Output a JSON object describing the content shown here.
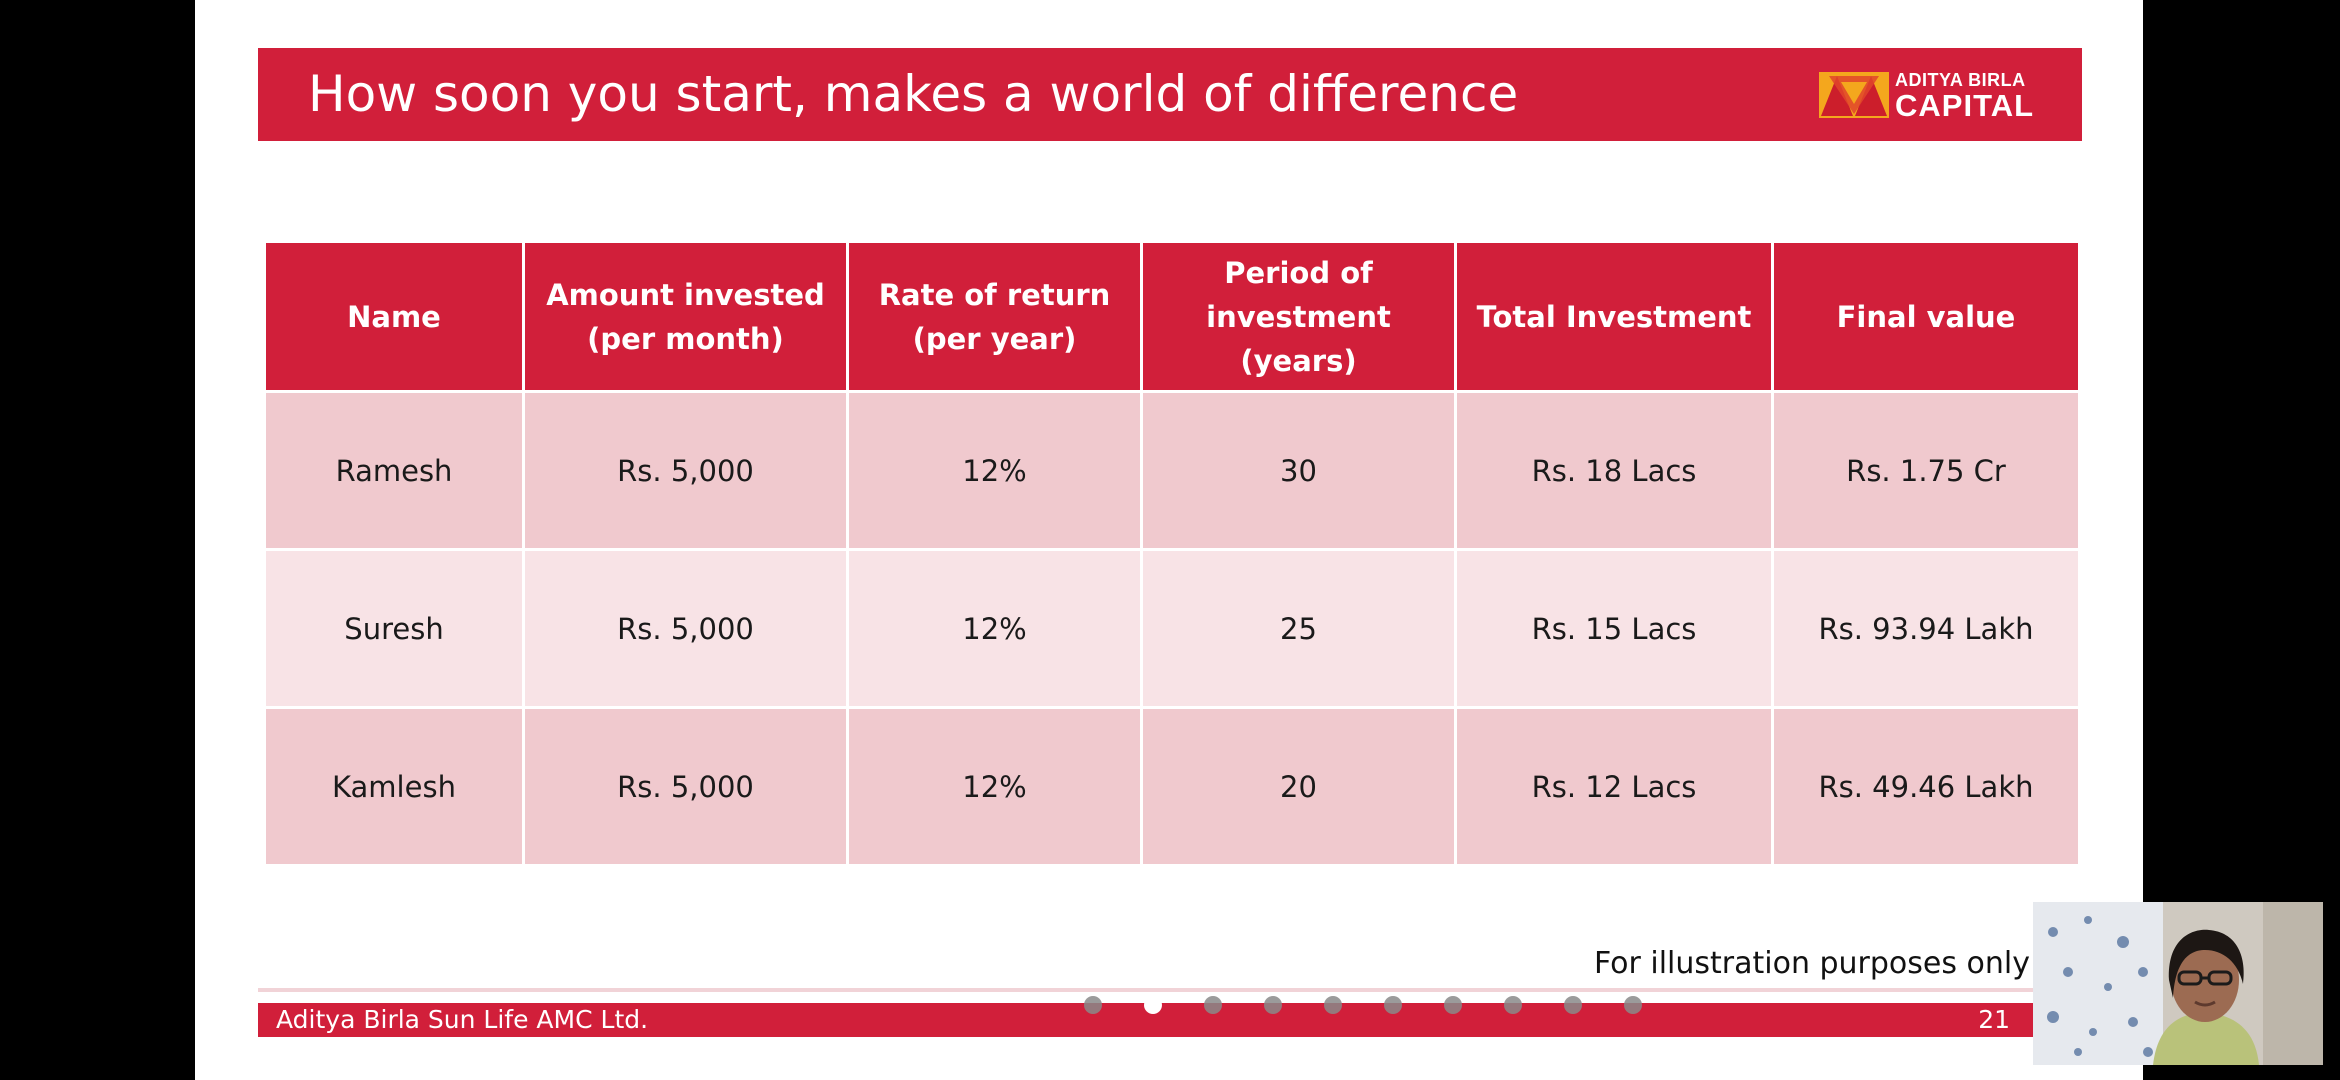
{
  "slide": {
    "title": "How soon you start, makes a world of difference",
    "logo": {
      "line1": "ADITYA BIRLA",
      "line2": "CAPITAL"
    },
    "table": {
      "headers": [
        [
          "Name"
        ],
        [
          "Amount invested",
          "(per month)"
        ],
        [
          "Rate of return",
          "(per year)"
        ],
        [
          "Period of",
          "investment",
          "(years)"
        ],
        [
          "Total Investment"
        ],
        [
          "Final value"
        ]
      ],
      "rows": [
        [
          "Ramesh",
          "Rs. 5,000",
          "12%",
          "30",
          "Rs. 18 Lacs",
          "Rs. 1.75 Cr"
        ],
        [
          "Suresh",
          "Rs. 5,000",
          "12%",
          "25",
          "Rs. 15 Lacs",
          "Rs. 93.94 Lakh"
        ],
        [
          "Kamlesh",
          "Rs. 5,000",
          "12%",
          "20",
          "Rs. 12 Lacs",
          "Rs. 49.46 Lakh"
        ]
      ]
    },
    "note": "For illustration purposes only",
    "footer": {
      "company": "Aditya Birla Sun Life AMC Ltd.",
      "page_number": "21"
    }
  },
  "pager": {
    "total": 10,
    "active_index": 1
  },
  "colors": {
    "brand_red": "#d11f3a",
    "row_dark": "#f0c9ce",
    "row_light": "#f8e3e6",
    "logo_orange": "#f4a71d"
  },
  "icons": {
    "logo_mark": "aditya-birla-logo-icon",
    "presenter": "presenter-video-thumbnail"
  }
}
